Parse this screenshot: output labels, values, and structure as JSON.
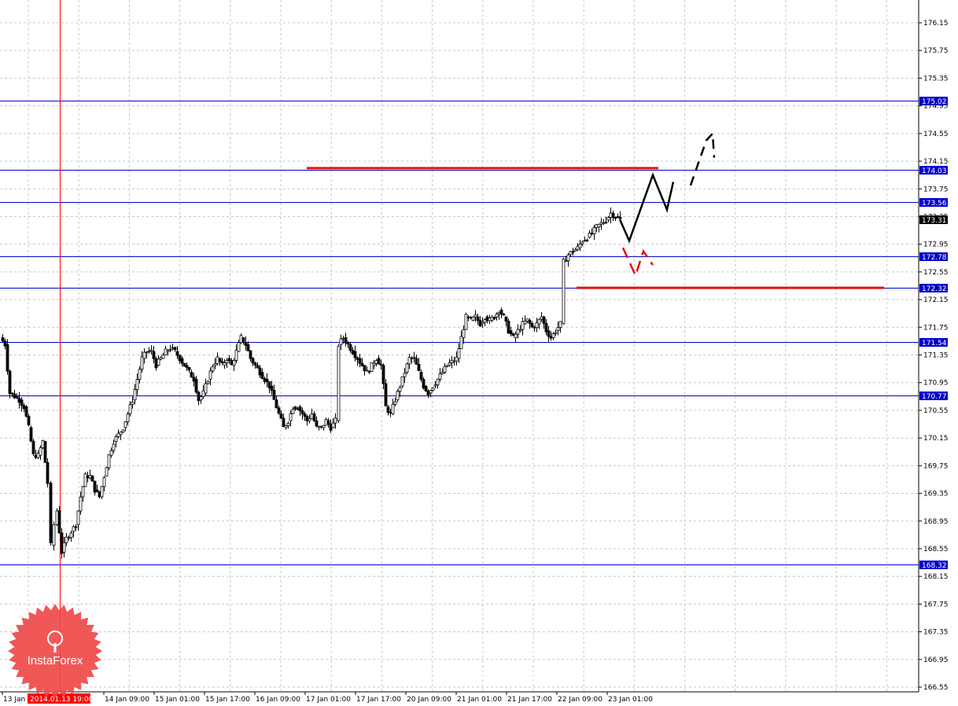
{
  "chart_data": {
    "type": "candlestick",
    "title": "",
    "xlabel": "",
    "ylabel": "",
    "ylim": [
      166.45,
      176.35
    ],
    "y_ticks": [
      "176.15",
      "175.75",
      "175.35",
      "174.95",
      "174.55",
      "174.15",
      "173.75",
      "173.35",
      "172.95",
      "172.55",
      "172.15",
      "171.75",
      "171.35",
      "170.95",
      "170.55",
      "170.15",
      "169.75",
      "169.35",
      "168.95",
      "168.55",
      "168.15",
      "167.75",
      "167.35",
      "166.95",
      "166.55"
    ],
    "x_ticks": [
      "13 Jan 0",
      "14 Jan 09:00",
      "15 Jan 01:00",
      "15 Jan 17:00",
      "16 Jan 09:00",
      "17 Jan 01:00",
      "17 Jan 17:00",
      "20 Jan 09:00",
      "21 Jan 01:00",
      "21 Jan 17:00",
      "22 Jan 09:00",
      "23 Jan 01:00"
    ],
    "grid": true,
    "levels": [
      {
        "label": "175.02",
        "value": 175.02,
        "color": "#0000cc"
      },
      {
        "label": "174.03",
        "value": 174.03,
        "color": "#0000cc"
      },
      {
        "label": "173.56",
        "value": 173.56,
        "color": "#0000cc"
      },
      {
        "label": "172.78",
        "value": 172.78,
        "color": "#0000cc"
      },
      {
        "label": "172.32",
        "value": 172.32,
        "color": "#0000cc"
      },
      {
        "label": "171.54",
        "value": 171.54,
        "color": "#0000cc"
      },
      {
        "label": "170.77",
        "value": 170.77,
        "color": "#0000cc"
      },
      {
        "label": "168.32",
        "value": 168.32,
        "color": "#0000cc"
      }
    ],
    "current_price": {
      "label": "173.31",
      "value": 173.31
    },
    "vertical_marker": {
      "label": "2014.01.13 19:00",
      "color": "#ff0000"
    },
    "red_segments": [
      {
        "from_x": 390,
        "to_x": 837,
        "value": 174.05
      },
      {
        "from_x": 733,
        "to_x": 1124,
        "value": 172.32
      }
    ],
    "close_path": [
      [
        0,
        171.6
      ],
      [
        6,
        171.5
      ],
      [
        12,
        170.8
      ],
      [
        18,
        170.75
      ],
      [
        24,
        170.7
      ],
      [
        30,
        170.6
      ],
      [
        36,
        170.3
      ],
      [
        42,
        169.9
      ],
      [
        48,
        169.9
      ],
      [
        54,
        170.1
      ],
      [
        60,
        169.5
      ],
      [
        64,
        168.6
      ],
      [
        68,
        168.9
      ],
      [
        72,
        169.1
      ],
      [
        78,
        168.5
      ],
      [
        84,
        168.7
      ],
      [
        90,
        168.8
      ],
      [
        96,
        168.9
      ],
      [
        102,
        169.3
      ],
      [
        108,
        169.6
      ],
      [
        114,
        169.6
      ],
      [
        120,
        169.4
      ],
      [
        126,
        169.3
      ],
      [
        132,
        169.6
      ],
      [
        138,
        169.9
      ],
      [
        144,
        170.1
      ],
      [
        150,
        170.2
      ],
      [
        156,
        170.3
      ],
      [
        162,
        170.5
      ],
      [
        168,
        170.7
      ],
      [
        174,
        171.0
      ],
      [
        180,
        171.3
      ],
      [
        186,
        171.4
      ],
      [
        192,
        171.4
      ],
      [
        198,
        171.2
      ],
      [
        204,
        171.3
      ],
      [
        210,
        171.4
      ],
      [
        216,
        171.45
      ],
      [
        222,
        171.4
      ],
      [
        228,
        171.3
      ],
      [
        234,
        171.2
      ],
      [
        240,
        171.1
      ],
      [
        246,
        171.0
      ],
      [
        252,
        170.7
      ],
      [
        258,
        170.8
      ],
      [
        264,
        171.0
      ],
      [
        270,
        171.2
      ],
      [
        276,
        171.3
      ],
      [
        282,
        171.2
      ],
      [
        288,
        171.3
      ],
      [
        294,
        171.2
      ],
      [
        300,
        171.4
      ],
      [
        306,
        171.6
      ],
      [
        312,
        171.5
      ],
      [
        318,
        171.3
      ],
      [
        324,
        171.2
      ],
      [
        330,
        171.1
      ],
      [
        336,
        171.0
      ],
      [
        342,
        170.9
      ],
      [
        348,
        170.7
      ],
      [
        354,
        170.5
      ],
      [
        360,
        170.3
      ],
      [
        366,
        170.4
      ],
      [
        372,
        170.6
      ],
      [
        378,
        170.6
      ],
      [
        384,
        170.5
      ],
      [
        390,
        170.4
      ],
      [
        396,
        170.5
      ],
      [
        402,
        170.3
      ],
      [
        408,
        170.3
      ],
      [
        414,
        170.4
      ],
      [
        420,
        170.3
      ],
      [
        426,
        170.4
      ],
      [
        430,
        171.5
      ],
      [
        436,
        171.6
      ],
      [
        442,
        171.5
      ],
      [
        448,
        171.4
      ],
      [
        454,
        171.3
      ],
      [
        460,
        171.2
      ],
      [
        466,
        171.1
      ],
      [
        472,
        171.2
      ],
      [
        478,
        171.3
      ],
      [
        484,
        171.2
      ],
      [
        490,
        170.6
      ],
      [
        496,
        170.5
      ],
      [
        502,
        170.7
      ],
      [
        508,
        170.9
      ],
      [
        514,
        171.1
      ],
      [
        520,
        171.3
      ],
      [
        526,
        171.3
      ],
      [
        532,
        171.1
      ],
      [
        538,
        170.9
      ],
      [
        544,
        170.8
      ],
      [
        550,
        170.9
      ],
      [
        556,
        171.0
      ],
      [
        562,
        171.1
      ],
      [
        568,
        171.2
      ],
      [
        574,
        171.25
      ],
      [
        580,
        171.3
      ],
      [
        586,
        171.6
      ],
      [
        592,
        171.9
      ],
      [
        598,
        171.85
      ],
      [
        604,
        171.9
      ],
      [
        610,
        171.8
      ],
      [
        616,
        171.9
      ],
      [
        622,
        171.85
      ],
      [
        628,
        171.9
      ],
      [
        634,
        172.0
      ],
      [
        640,
        171.9
      ],
      [
        646,
        171.7
      ],
      [
        652,
        171.6
      ],
      [
        658,
        171.7
      ],
      [
        664,
        171.8
      ],
      [
        670,
        171.85
      ],
      [
        676,
        171.75
      ],
      [
        682,
        171.8
      ],
      [
        688,
        171.9
      ],
      [
        694,
        171.7
      ],
      [
        700,
        171.6
      ],
      [
        706,
        171.7
      ],
      [
        712,
        171.8
      ],
      [
        716,
        172.7
      ],
      [
        722,
        172.8
      ],
      [
        728,
        172.85
      ],
      [
        734,
        172.9
      ],
      [
        740,
        173.0
      ],
      [
        746,
        173.05
      ],
      [
        752,
        173.1
      ],
      [
        758,
        173.2
      ],
      [
        764,
        173.25
      ],
      [
        770,
        173.3
      ],
      [
        776,
        173.4
      ],
      [
        782,
        173.35
      ],
      [
        788,
        173.31
      ]
    ],
    "projection_black": [
      [
        788,
        173.31
      ],
      [
        800,
        173.0
      ],
      [
        830,
        173.95
      ],
      [
        848,
        173.45
      ],
      [
        856,
        173.85
      ]
    ],
    "projection_dashed": [
      [
        878,
        173.8
      ],
      [
        898,
        174.45
      ],
      [
        906,
        174.55
      ],
      [
        908,
        174.2
      ]
    ],
    "projection_red": [
      [
        792,
        172.9
      ],
      [
        808,
        172.5
      ],
      [
        818,
        172.85
      ],
      [
        830,
        172.65
      ]
    ]
  },
  "logo": {
    "name": "InstaForex"
  }
}
